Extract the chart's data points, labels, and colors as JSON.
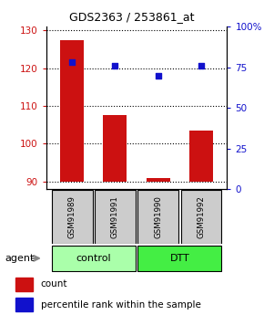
{
  "title": "GDS2363 / 253861_at",
  "samples": [
    "GSM91989",
    "GSM91991",
    "GSM91990",
    "GSM91992"
  ],
  "counts": [
    127.5,
    107.5,
    90.8,
    103.5
  ],
  "percentiles": [
    78,
    76,
    70,
    76
  ],
  "ylim_left": [
    88,
    131
  ],
  "ylim_right": [
    0,
    100
  ],
  "yticks_left": [
    90,
    100,
    110,
    120,
    130
  ],
  "yticks_right": [
    0,
    25,
    50,
    75,
    100
  ],
  "ytick_labels_right": [
    "0",
    "25",
    "50",
    "75",
    "100%"
  ],
  "bar_color": "#cc1111",
  "dot_color": "#1111cc",
  "bar_bottom": 90,
  "group_colors": [
    "#aaffaa",
    "#44ee44"
  ],
  "group_labels": [
    "control",
    "DTT"
  ],
  "agent_label": "agent",
  "legend_items": [
    {
      "color": "#cc1111",
      "label": "count"
    },
    {
      "color": "#1111cc",
      "label": "percentile rank within the sample"
    }
  ],
  "background_color": "#ffffff",
  "plot_bg": "#ffffff",
  "tick_label_color_left": "#cc1111",
  "tick_label_color_right": "#1111cc",
  "sample_box_color": "#cccccc"
}
